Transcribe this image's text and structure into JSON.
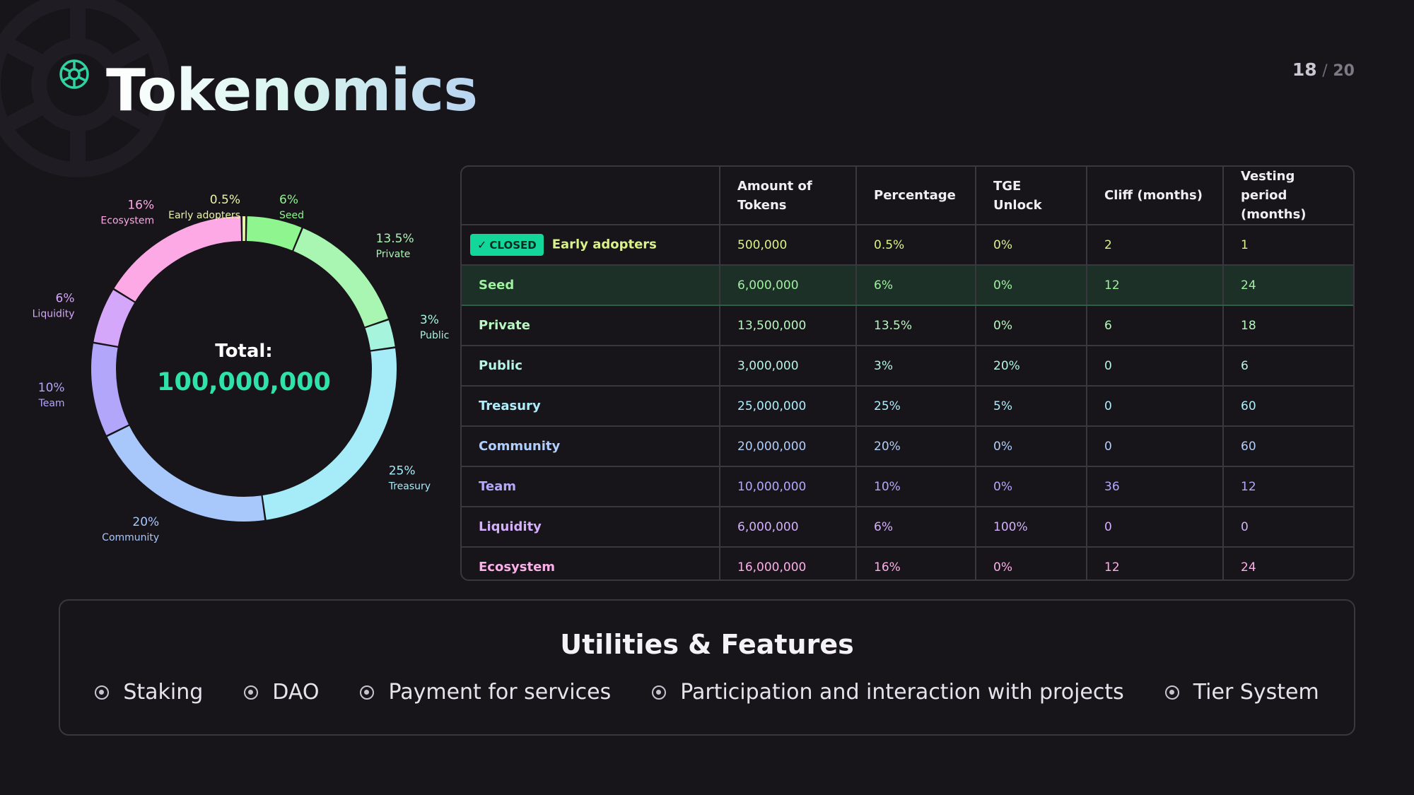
{
  "header": {
    "title": "Tokenomics",
    "page_current": "18",
    "page_separator": "/",
    "page_total": "20"
  },
  "chart_data": {
    "type": "pie",
    "total_label": "Total:",
    "total_value": "100,000,000",
    "slices": [
      {
        "name": "Early adopters",
        "value": 0.5,
        "label": "0.5%",
        "color": "#e8f5a6"
      },
      {
        "name": "Seed",
        "value": 6,
        "label": "6%",
        "color": "#8ef58f"
      },
      {
        "name": "Private",
        "value": 13.5,
        "label": "13.5%",
        "color": "#a9f5b2"
      },
      {
        "name": "Public",
        "value": 3,
        "label": "3%",
        "color": "#a7f4dc"
      },
      {
        "name": "Treasury",
        "value": 25,
        "label": "25%",
        "color": "#a5ecf8"
      },
      {
        "name": "Community",
        "value": 20,
        "label": "20%",
        "color": "#a8c8fc"
      },
      {
        "name": "Team",
        "value": 10,
        "label": "10%",
        "color": "#b2a6fb"
      },
      {
        "name": "Liquidity",
        "value": 6,
        "label": "6%",
        "color": "#d4a7fb"
      },
      {
        "name": "Ecosystem",
        "value": 16,
        "label": "16%",
        "color": "#fca9e6"
      }
    ]
  },
  "table": {
    "headers": [
      "",
      "Amount of Tokens",
      "Percentage",
      "TGE Unlock",
      "Cliff (months)",
      "Vesting period (months)"
    ],
    "closed_badge": "CLOSED",
    "rows": [
      {
        "name": "Early adopters",
        "amount": "500,000",
        "percentage": "0.5%",
        "tge": "0%",
        "cliff": "2",
        "vesting": "1",
        "color": "#d9f28a"
      },
      {
        "name": "Seed",
        "amount": "6,000,000",
        "percentage": "6%",
        "tge": "0%",
        "cliff": "12",
        "vesting": "24",
        "color": "#9ef29e"
      },
      {
        "name": "Private",
        "amount": "13,500,000",
        "percentage": "13.5%",
        "tge": "0%",
        "cliff": "6",
        "vesting": "18",
        "color": "#b7f7c0"
      },
      {
        "name": "Public",
        "amount": "3,000,000",
        "percentage": "3%",
        "tge": "20%",
        "cliff": "0",
        "vesting": "6",
        "color": "#b5f4e6"
      },
      {
        "name": "Treasury",
        "amount": "25,000,000",
        "percentage": "25%",
        "tge": "5%",
        "cliff": "0",
        "vesting": "60",
        "color": "#aeeefa"
      },
      {
        "name": "Community",
        "amount": "20,000,000",
        "percentage": "20%",
        "tge": "0%",
        "cliff": "0",
        "vesting": "60",
        "color": "#b0cffd"
      },
      {
        "name": "Team",
        "amount": "10,000,000",
        "percentage": "10%",
        "tge": "0%",
        "cliff": "36",
        "vesting": "12",
        "color": "#b4aafc"
      },
      {
        "name": "Liquidity",
        "amount": "6,000,000",
        "percentage": "6%",
        "tge": "100%",
        "cliff": "0",
        "vesting": "0",
        "color": "#d4b0fc"
      },
      {
        "name": "Ecosystem",
        "amount": "16,000,000",
        "percentage": "16%",
        "tge": "0%",
        "cliff": "12",
        "vesting": "24",
        "color": "#fbb0e8"
      }
    ]
  },
  "utilities": {
    "title": "Utilities & Features",
    "items": [
      "Staking",
      "DAO",
      "Payment for services",
      "Participation and interaction with projects",
      "Tier System"
    ]
  }
}
